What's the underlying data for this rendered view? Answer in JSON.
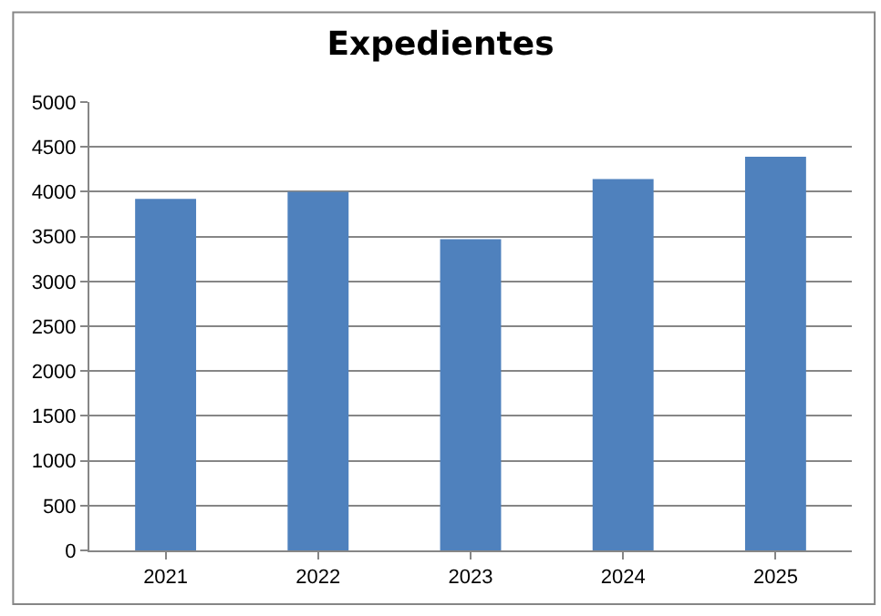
{
  "chart_data": {
    "type": "bar",
    "title": "Expedientes",
    "categories": [
      "2021",
      "2022",
      "2023",
      "2024",
      "2025"
    ],
    "values": [
      3920,
      4000,
      3470,
      4140,
      4390
    ],
    "color": "#4f81bd",
    "ylim": [
      0,
      5000
    ],
    "yticks": [
      0,
      500,
      1000,
      1500,
      2000,
      2500,
      3000,
      3500,
      4000,
      4500,
      5000
    ],
    "grid": "y"
  }
}
